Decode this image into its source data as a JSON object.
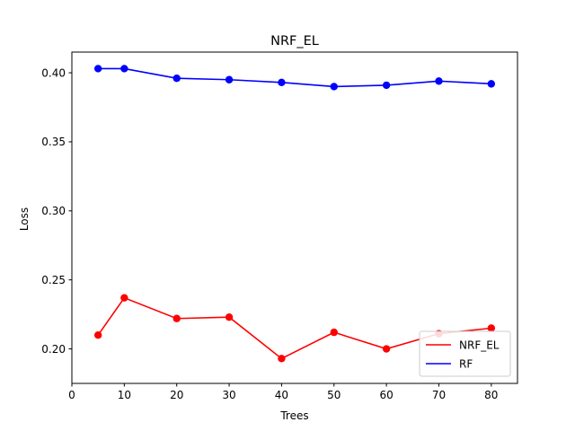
{
  "chart_data": {
    "type": "line",
    "title": "NRF_EL",
    "xlabel": "Trees",
    "ylabel": "Loss",
    "xlim": [
      0,
      85
    ],
    "ylim": [
      0.175,
      0.415
    ],
    "xticks": [
      0,
      10,
      20,
      30,
      40,
      50,
      60,
      70,
      80
    ],
    "yticks": [
      0.2,
      0.25,
      0.3,
      0.35,
      0.4
    ],
    "ytick_labels": [
      "0.20",
      "0.25",
      "0.30",
      "0.35",
      "0.40"
    ],
    "xtick_labels": [
      "0",
      "10",
      "20",
      "30",
      "40",
      "50",
      "60",
      "70",
      "80"
    ],
    "grid": false,
    "legend_position": "lower-right",
    "series": [
      {
        "name": "NRF_EL",
        "color": "#ff0000",
        "x": [
          5,
          10,
          20,
          30,
          40,
          50,
          60,
          70,
          80
        ],
        "y": [
          0.21,
          0.237,
          0.222,
          0.223,
          0.193,
          0.212,
          0.2,
          0.211,
          0.215
        ]
      },
      {
        "name": "RF",
        "color": "#0000ff",
        "x": [
          5,
          10,
          20,
          30,
          40,
          50,
          60,
          70,
          80
        ],
        "y": [
          0.403,
          0.403,
          0.396,
          0.395,
          0.393,
          0.39,
          0.391,
          0.394,
          0.392
        ]
      }
    ]
  }
}
